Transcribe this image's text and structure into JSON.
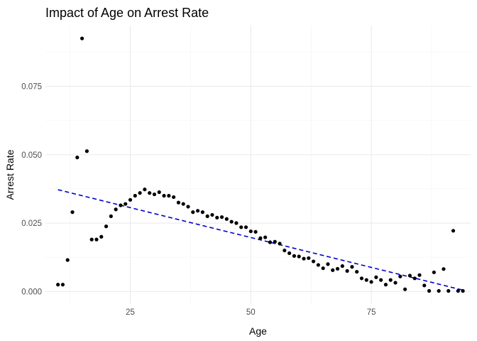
{
  "chart_data": {
    "type": "scatter",
    "title": "Impact of Age on Arrest Rate",
    "xlabel": "Age",
    "ylabel": "Arrest Rate",
    "xlim": [
      7.4,
      95.6
    ],
    "ylim": [
      -0.0046,
      0.0972
    ],
    "x_ticks": [
      25,
      50,
      75
    ],
    "x_tick_labels": [
      "25",
      "50",
      "75"
    ],
    "x_minor_ticks": [
      12.5,
      37.5,
      62.5,
      87.5
    ],
    "y_ticks": [
      0,
      0.025,
      0.05,
      0.075
    ],
    "y_tick_labels": [
      "0.000",
      "0.025",
      "0.050",
      "0.075"
    ],
    "y_minor_ticks": [
      0.0125,
      0.0375,
      0.0625,
      0.0875
    ],
    "grid": true,
    "point_color": "#000000",
    "trend_color": "#0000cd",
    "trend_line": {
      "style": "dashed",
      "x": [
        10,
        94
      ],
      "y": [
        0.0372,
        0.0005
      ]
    },
    "x": [
      10,
      11,
      12,
      13,
      14,
      15,
      16,
      17,
      18,
      19,
      20,
      21,
      22,
      23,
      24,
      25,
      26,
      27,
      28,
      29,
      30,
      31,
      32,
      33,
      34,
      35,
      36,
      37,
      38,
      39,
      40,
      41,
      42,
      43,
      44,
      45,
      46,
      47,
      48,
      49,
      50,
      51,
      52,
      53,
      54,
      55,
      56,
      57,
      58,
      59,
      60,
      61,
      62,
      63,
      64,
      65,
      66,
      67,
      68,
      69,
      70,
      71,
      72,
      73,
      74,
      75,
      76,
      77,
      78,
      79,
      80,
      81,
      82,
      83,
      84,
      85,
      86,
      87,
      88,
      89,
      90,
      91,
      92,
      93,
      94
    ],
    "y": [
      0.0025,
      0.0025,
      0.0115,
      0.029,
      0.049,
      0.0925,
      0.0513,
      0.019,
      0.019,
      0.02,
      0.0238,
      0.0275,
      0.03,
      0.0315,
      0.032,
      0.0335,
      0.035,
      0.036,
      0.0373,
      0.036,
      0.0355,
      0.0363,
      0.035,
      0.035,
      0.0345,
      0.0325,
      0.032,
      0.031,
      0.029,
      0.0295,
      0.029,
      0.0275,
      0.028,
      0.027,
      0.0272,
      0.0265,
      0.0255,
      0.025,
      0.0235,
      0.0235,
      0.022,
      0.0218,
      0.0195,
      0.0198,
      0.018,
      0.0182,
      0.0175,
      0.015,
      0.014,
      0.013,
      0.0128,
      0.012,
      0.0122,
      0.011,
      0.0097,
      0.0085,
      0.01,
      0.0078,
      0.0083,
      0.0093,
      0.0075,
      0.009,
      0.0072,
      0.0048,
      0.0042,
      0.0035,
      0.0052,
      0.0042,
      0.0025,
      0.0042,
      0.0032,
      0.0055,
      0.0008,
      0.0058,
      0.0048,
      0.006,
      0.0022,
      0.0002,
      0.007,
      0.0002,
      0.0082,
      0.0002,
      0.0222,
      0.0002,
      0.0002
    ]
  }
}
